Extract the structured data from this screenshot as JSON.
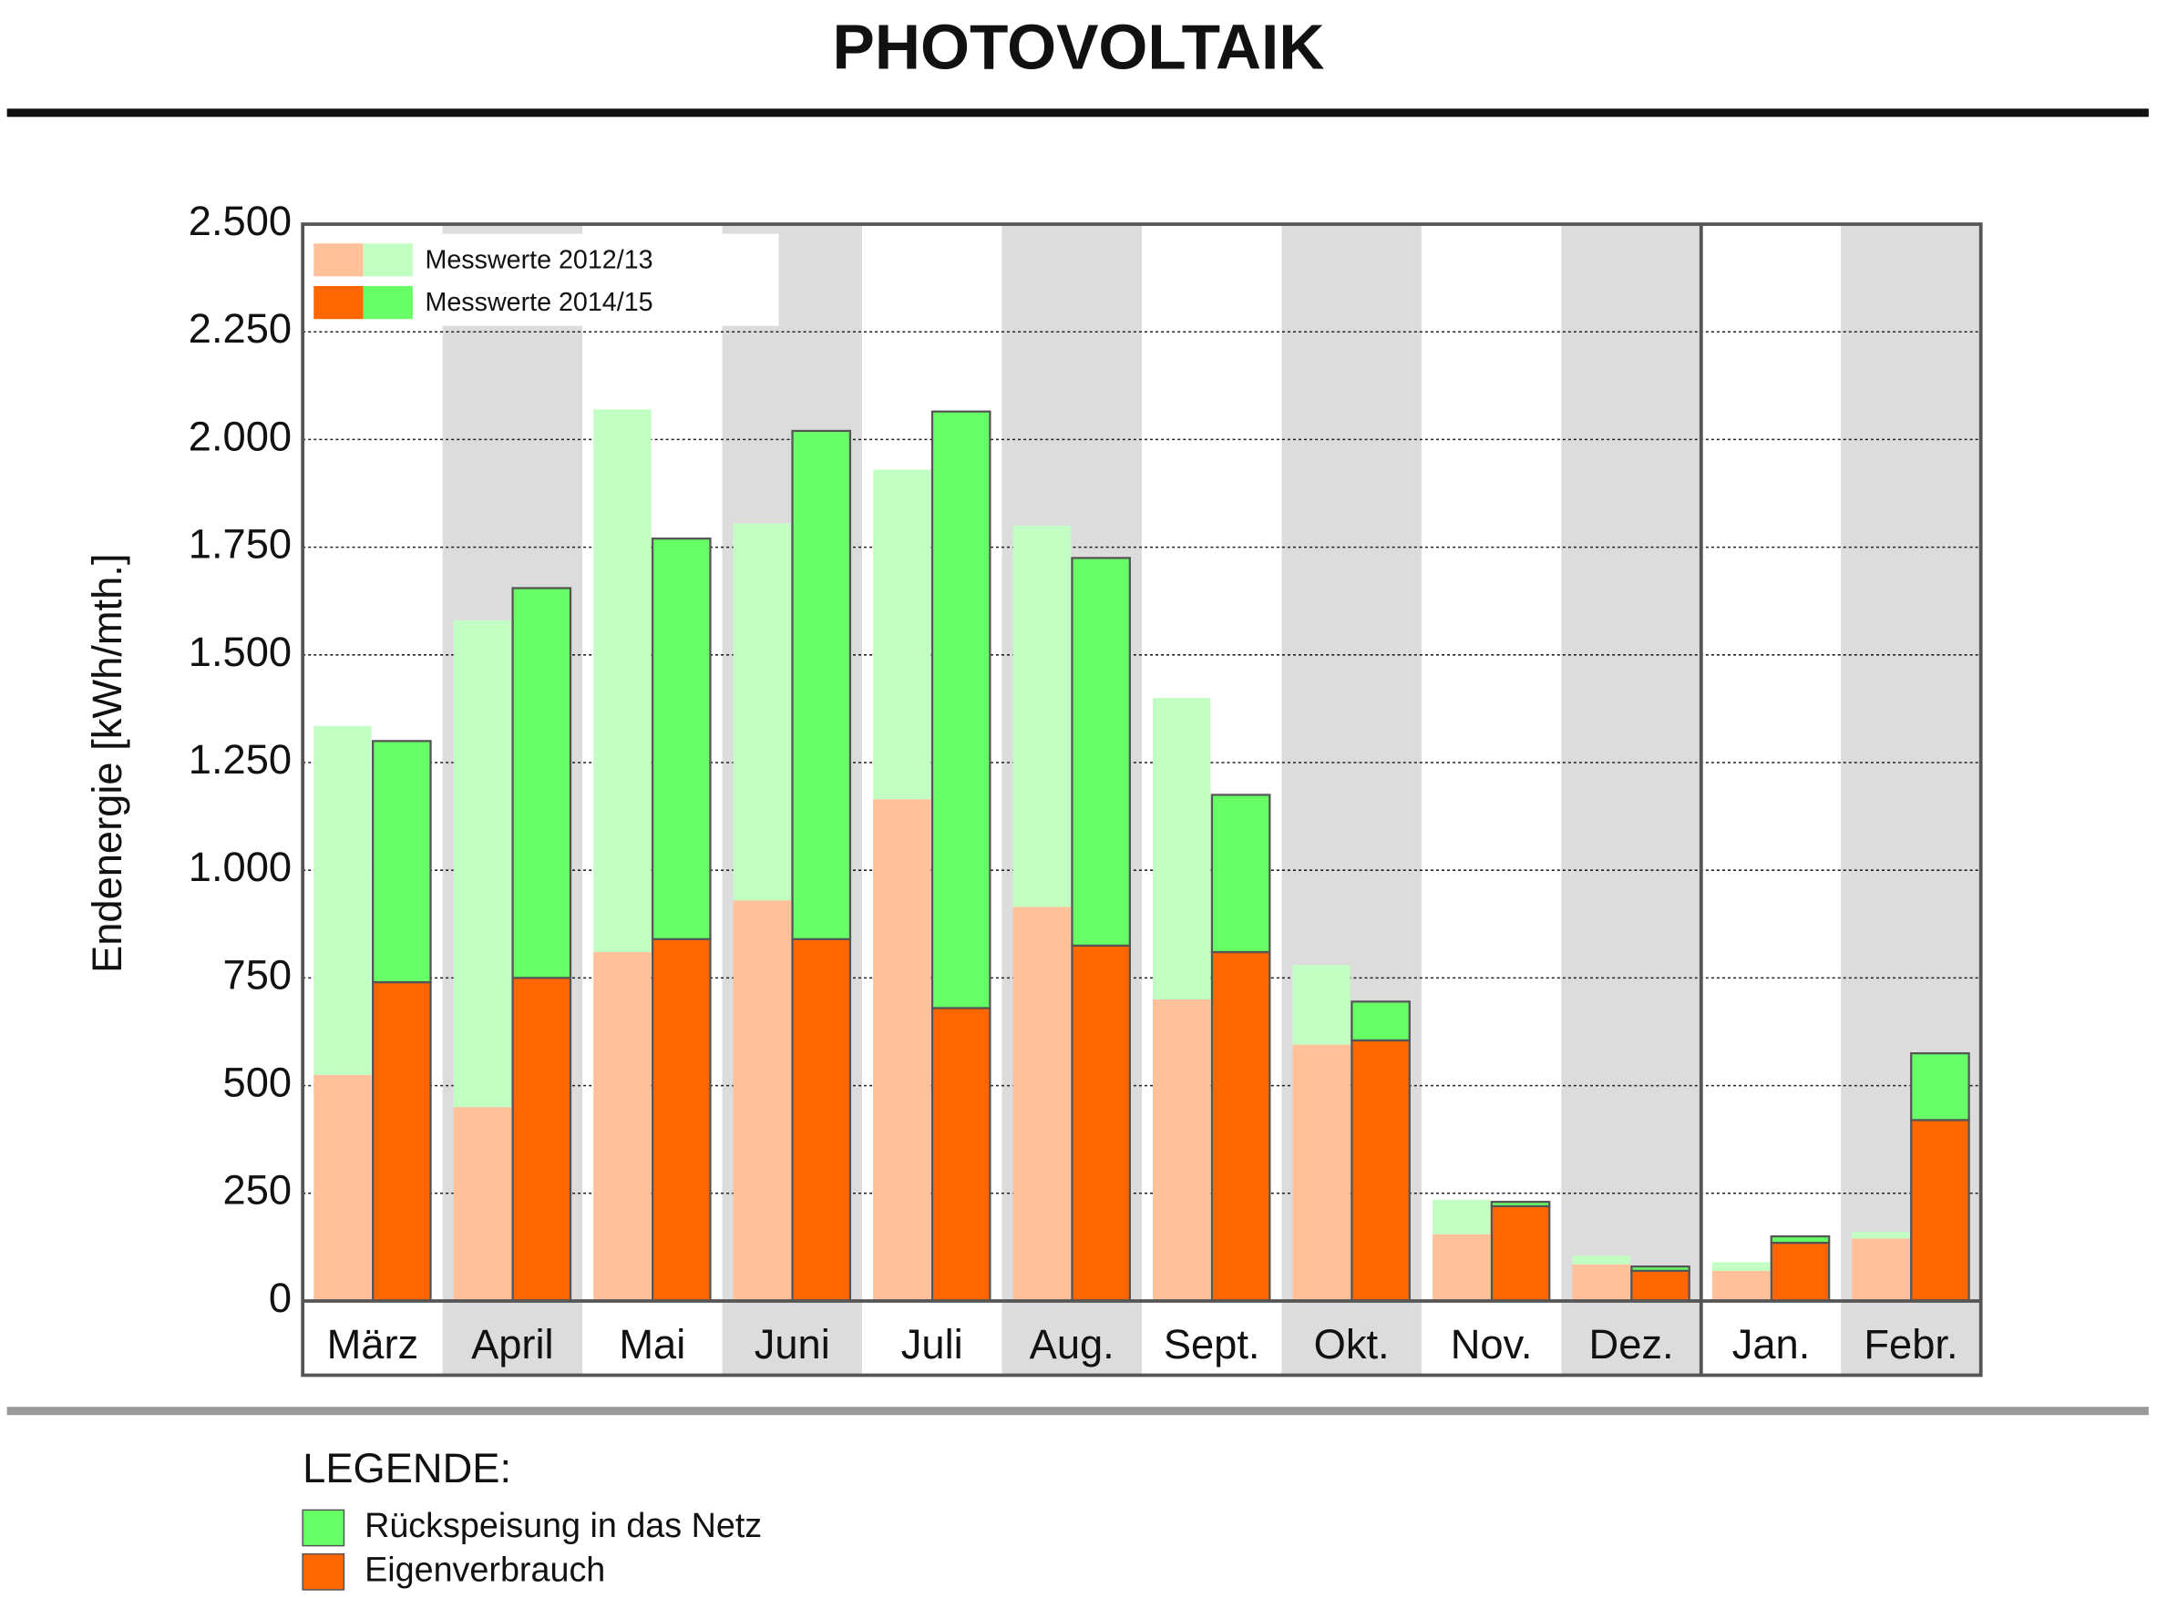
{
  "chart_data": {
    "type": "grouped_stacked_bar",
    "title": "PHOTOVOLTAIK",
    "y_label": "Endenergie [kWh/mth.]",
    "categories": [
      "März",
      "April",
      "Mai",
      "Juni",
      "Juli",
      "Aug.",
      "Sept.",
      "Okt.",
      "Nov.",
      "Dez.",
      "Jan.",
      "Febr."
    ],
    "ylim": [
      0,
      2500
    ],
    "yticks": [
      0,
      250,
      500,
      750,
      {
        "value": 1000,
        "label": "1.000"
      },
      {
        "value": 1250,
        "label": "1.250"
      },
      {
        "value": 1500,
        "label": "1.500"
      },
      {
        "value": 1750,
        "label": "1.750"
      },
      {
        "value": 2000,
        "label": "2.000"
      },
      {
        "value": 2250,
        "label": "2.250"
      },
      {
        "value": 2500,
        "label": "2.500"
      }
    ],
    "grid": true,
    "groups": [
      {
        "name": "Messwerte 2012/13",
        "series": [
          {
            "color": "#ffc09a",
            "values": [
              525,
              450,
              810,
              930,
              1165,
              915,
              700,
              595,
              155,
              85,
              70,
              145
            ]
          },
          {
            "color": "#c2ffc2",
            "values": [
              810,
              1130,
              1260,
              875,
              765,
              885,
              700,
              185,
              80,
              20,
              20,
              15
            ]
          }
        ]
      },
      {
        "name": "Messwerte 2014/15",
        "series": [
          {
            "color": "#ff6600",
            "values": [
              740,
              750,
              840,
              840,
              680,
              825,
              810,
              605,
              220,
              70,
              135,
              420
            ]
          },
          {
            "color": "#66ff66",
            "values": [
              560,
              905,
              930,
              1180,
              1385,
              900,
              365,
              90,
              10,
              10,
              15,
              155
            ]
          }
        ]
      }
    ],
    "legend": {
      "title": "LEGENDE:",
      "items": [
        "Rückspeisung in das Netz",
        "Eigenverbrauch"
      ]
    }
  }
}
